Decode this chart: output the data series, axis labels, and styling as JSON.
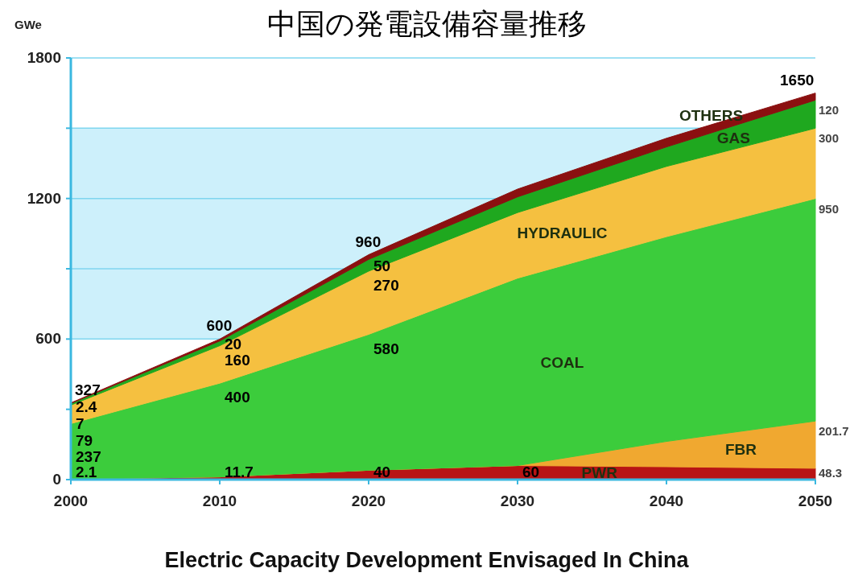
{
  "chart_data": {
    "type": "area",
    "stacked": true,
    "title": "中国の発電設備容量推移",
    "ylabel": "GWe",
    "xlabel": "Electric Capacity Development Envisaged In China",
    "x": [
      2000,
      2010,
      2020,
      2030,
      2040,
      2050
    ],
    "xlim": [
      2000,
      2050
    ],
    "xticks": [
      2000,
      2010,
      2020,
      2030,
      2040,
      2050
    ],
    "ylim": [
      0,
      1800
    ],
    "yticks": [
      0,
      {
        "value": 300,
        "label": null
      },
      600,
      {
        "value": 900,
        "label": null
      },
      1200,
      {
        "value": 1500,
        "label": null
      },
      1800
    ],
    "grid": "y",
    "legend": false,
    "bands": [
      {
        "axis": "y",
        "from": 600,
        "to": 1500,
        "color": "#cdf0fb"
      }
    ],
    "series": [
      {
        "name": "PWR",
        "color": "#b81414",
        "values": [
          2.1,
          11.7,
          40,
          60,
          55,
          48.3
        ],
        "value_labels": [
          "2.1",
          "11.7",
          "40",
          "60",
          null,
          "48.3"
        ]
      },
      {
        "name": "FBR",
        "color": "#f0a830",
        "values": [
          0,
          0,
          0,
          0,
          108,
          201.7
        ],
        "value_labels": [
          null,
          null,
          null,
          null,
          null,
          "201.7"
        ]
      },
      {
        "name": "COAL",
        "color": "#3ccc3c",
        "values": [
          237,
          400,
          580,
          800,
          874,
          950
        ],
        "value_labels": [
          "237",
          "400",
          "580",
          null,
          null,
          "950"
        ]
      },
      {
        "name": "HYDRAULIC",
        "color": "#f5c040",
        "values": [
          79,
          160,
          270,
          280,
          300,
          300
        ],
        "value_labels": [
          "79",
          "160",
          "270",
          null,
          null,
          "300"
        ]
      },
      {
        "name": "GAS",
        "color": "#1fa81f",
        "values": [
          7,
          20,
          50,
          67,
          83,
          120
        ],
        "value_labels": [
          "7",
          "20",
          "50",
          null,
          null,
          "120"
        ]
      },
      {
        "name": "OTHERS",
        "color": "#8b1010",
        "values": [
          2.4,
          8,
          20,
          33,
          37,
          30
        ],
        "value_labels": [
          "2.4",
          null,
          null,
          null,
          null,
          null
        ]
      }
    ],
    "totals": [
      "327",
      "600",
      "960",
      null,
      null,
      "1650"
    ]
  }
}
